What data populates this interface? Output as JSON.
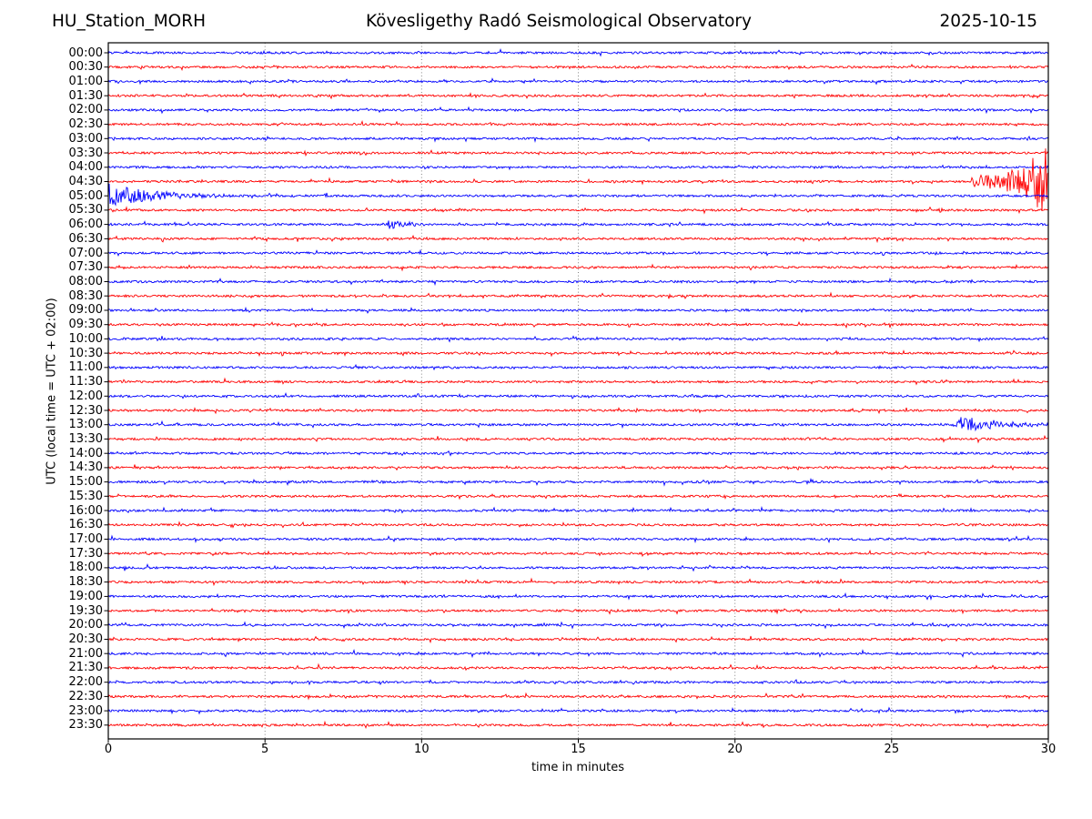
{
  "header": {
    "station": "HU_Station_MORH",
    "observatory": "Kövesligethy Radó Seismological Observatory",
    "date": "2025-10-15"
  },
  "chart_data": {
    "type": "line",
    "subtype": "helicorder-seismogram",
    "station": "HU_Station_MORH",
    "title": "Kövesligethy Radó Seismological Observatory",
    "date": "2025-10-15",
    "xlabel": "time in minutes",
    "ylabel": "UTC (local time = UTC + 02:00)",
    "xlim": [
      0,
      30
    ],
    "x_ticks": [
      0,
      5,
      10,
      15,
      20,
      25,
      30
    ],
    "grid_x": [
      5,
      10,
      15,
      20,
      25
    ],
    "grid_style": "dotted",
    "minutes_per_row": 30,
    "rows": [
      "00:00",
      "00:30",
      "01:00",
      "01:30",
      "02:00",
      "02:30",
      "03:00",
      "03:30",
      "04:00",
      "04:30",
      "05:00",
      "05:30",
      "06:00",
      "06:30",
      "07:00",
      "07:30",
      "08:00",
      "08:30",
      "09:00",
      "09:30",
      "10:00",
      "10:30",
      "11:00",
      "11:30",
      "12:00",
      "12:30",
      "13:00",
      "13:30",
      "14:00",
      "14:30",
      "15:00",
      "15:30",
      "16:00",
      "16:30",
      "17:00",
      "17:30",
      "18:00",
      "18:30",
      "19:00",
      "19:30",
      "20:00",
      "20:30",
      "21:00",
      "21:30",
      "22:00",
      "22:30",
      "23:00",
      "23:30"
    ],
    "row_colors_alternate": [
      "#0000ff",
      "#ff0000"
    ],
    "grid_color": "#777777",
    "axis_color": "#000000",
    "background_color": "#ffffff",
    "noise_amplitude_rows": 0.075,
    "events": [
      {
        "row": "00:00",
        "start_min": 4.9,
        "end_min": 5.2,
        "peak_amp_rows": 0.18,
        "shape": "burst",
        "note": "tiny blip near 5 min"
      },
      {
        "row": "04:30",
        "start_min": 27.55,
        "end_min": 30.0,
        "peak_amp_rows": 2.6,
        "shape": "grow",
        "note": "strong event onset growing to end of line"
      },
      {
        "row": "05:00",
        "start_min": 0.0,
        "end_min": 4.5,
        "peak_amp_rows": 0.95,
        "shape": "decay",
        "note": "continuation of strong event, decaying coda"
      },
      {
        "row": "06:00",
        "start_min": 8.8,
        "end_min": 10.6,
        "peak_amp_rows": 0.32,
        "shape": "burst",
        "note": "small event before 10 min mark"
      },
      {
        "row": "10:00",
        "start_min": 14.8,
        "end_min": 15.2,
        "peak_amp_rows": 0.16,
        "shape": "burst",
        "note": "tiny blip near 15 min"
      },
      {
        "row": "13:00",
        "start_min": 26.95,
        "end_min": 30.0,
        "peak_amp_rows": 0.58,
        "shape": "burst",
        "note": "moderate event near end of line"
      }
    ]
  }
}
